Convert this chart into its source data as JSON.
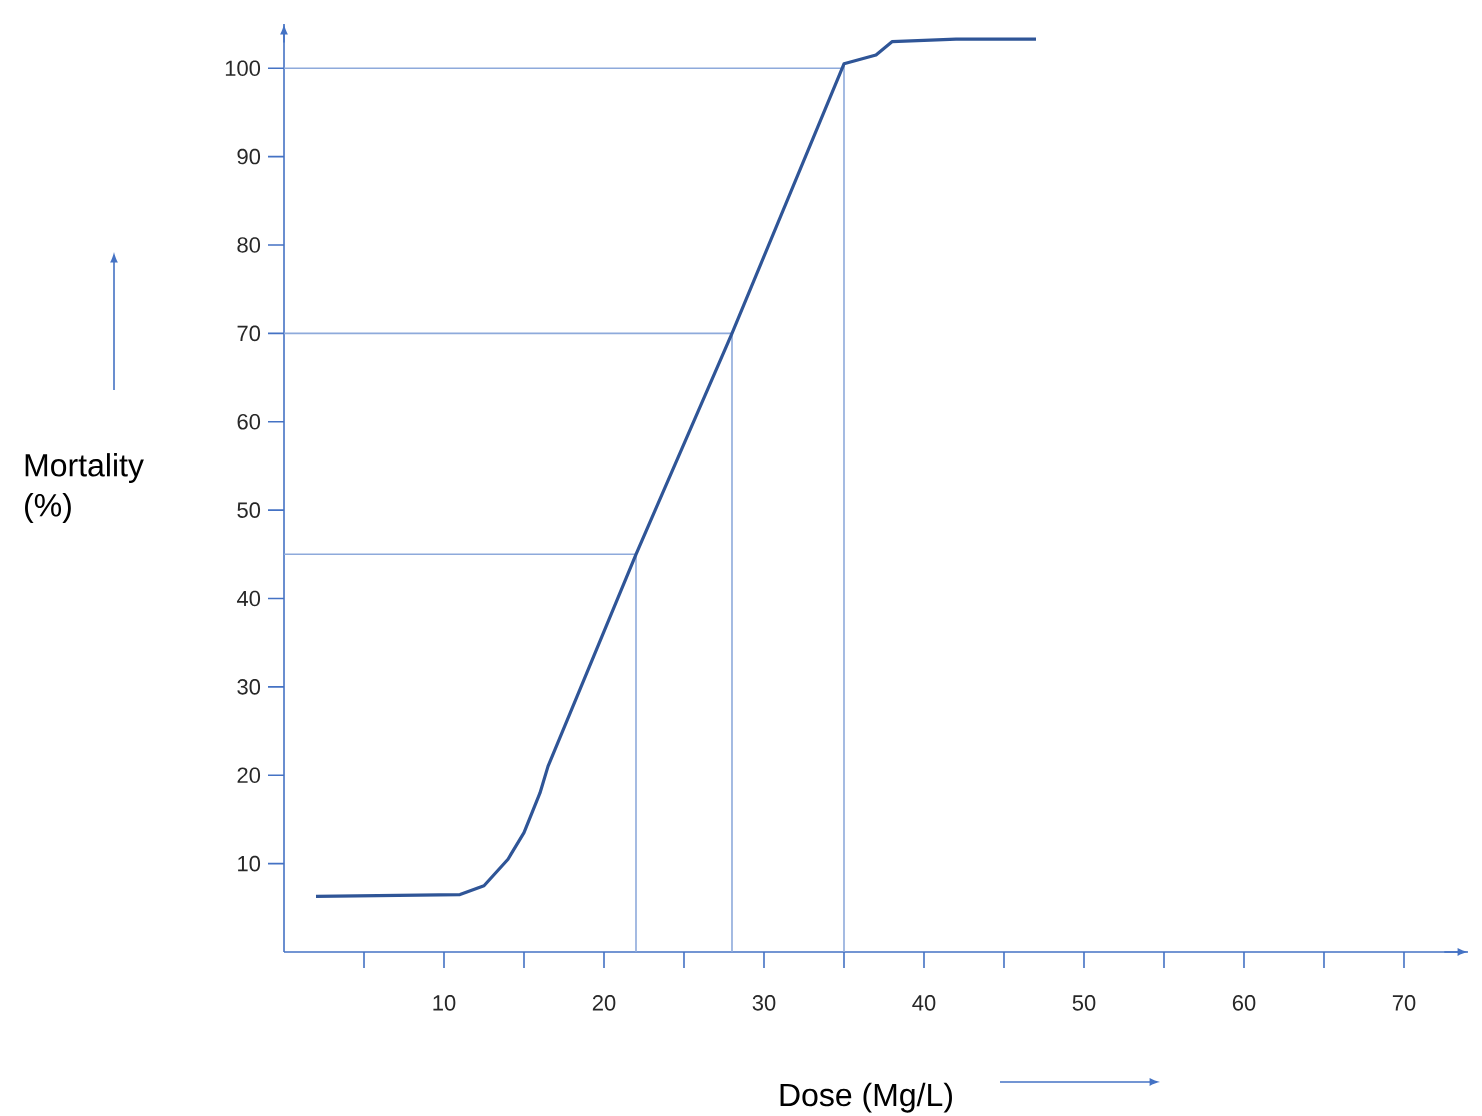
{
  "chart_data": {
    "type": "line",
    "xlabel": "Dose (Mg/L)",
    "ylabel": "Mortality (%)",
    "x": [
      2,
      11,
      12.5,
      14,
      15,
      16,
      16.5,
      22,
      28,
      35,
      37,
      38,
      42,
      47
    ],
    "series": [
      {
        "color": "#2f5597",
        "values": [
          6.3,
          6.5,
          7.5,
          10.5,
          13.5,
          18,
          21,
          45,
          70,
          100.5,
          101.5,
          103,
          103.3,
          103.3
        ]
      }
    ],
    "xlim": [
      0,
      74
    ],
    "ylim": [
      0,
      105
    ],
    "xticks": [
      {
        "value": 5,
        "label": null
      },
      10,
      {
        "value": 15,
        "label": null
      },
      20,
      {
        "value": 25,
        "label": null
      },
      30,
      {
        "value": 35,
        "label": null
      },
      40,
      {
        "value": 45,
        "label": null
      },
      50,
      {
        "value": 55,
        "label": null
      },
      60,
      {
        "value": 65,
        "label": null
      },
      70
    ],
    "yticks": [
      10,
      20,
      30,
      40,
      50,
      60,
      70,
      80,
      90,
      100
    ],
    "ref_lines": [
      {
        "axis": "x",
        "value": 22,
        "color": "#8eaadb"
      },
      {
        "axis": "x",
        "value": 28,
        "color": "#8eaadb"
      },
      {
        "axis": "x",
        "value": 35,
        "color": "#8eaadb"
      },
      {
        "axis": "y",
        "value": 45,
        "color": "#8eaadb"
      },
      {
        "axis": "y",
        "value": 70,
        "color": "#8eaadb"
      },
      {
        "axis": "y",
        "value": 100,
        "color": "#8eaadb"
      }
    ],
    "marker": "none",
    "line_style": "solid",
    "grid": false,
    "legend": false
  }
}
